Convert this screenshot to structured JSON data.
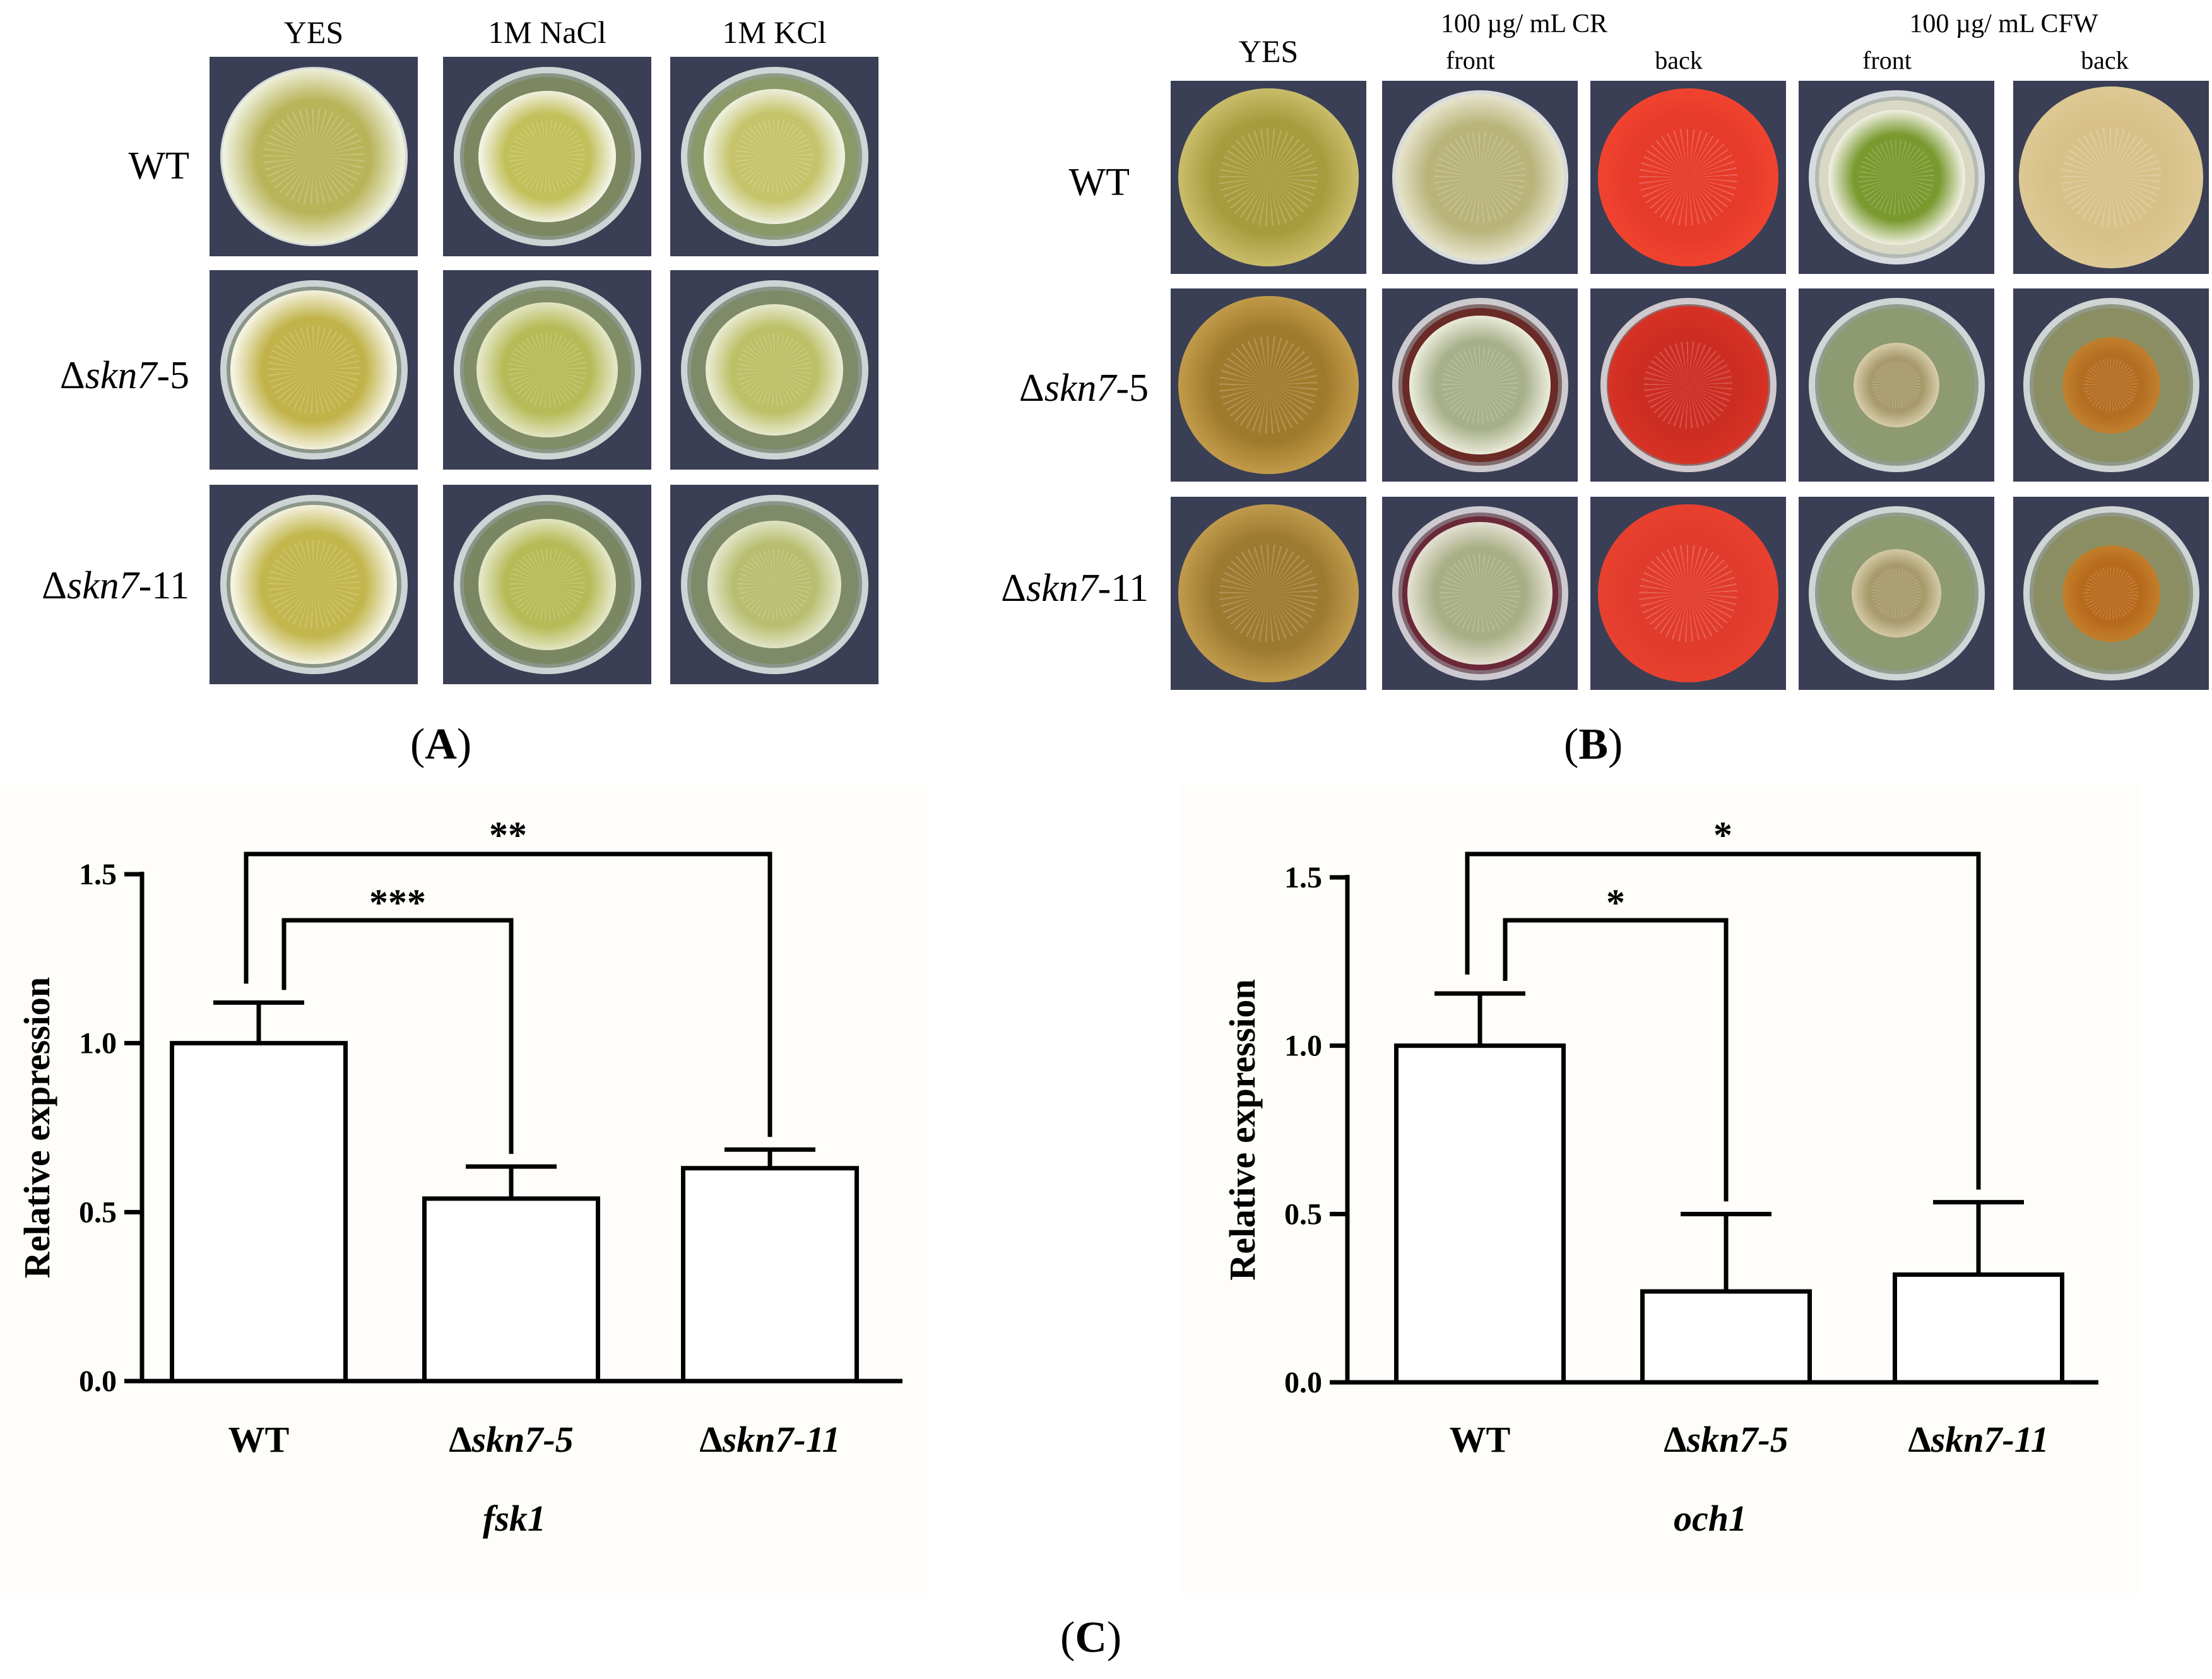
{
  "panelA": {
    "columns": [
      "YES",
      "1M NaCl",
      "1M KCl"
    ],
    "rows": [
      {
        "prefix": "",
        "italic": "",
        "suffix": "WT"
      },
      {
        "prefix": "Δ",
        "italic": "skn7",
        "suffix": "-5"
      },
      {
        "prefix": "Δ",
        "italic": "skn7",
        "suffix": "-11"
      }
    ],
    "letter": "A",
    "plates": [
      [
        {
          "bg": "#3a3f55",
          "medium": "#b7bf83",
          "halo": "#eef0dc",
          "colony": "#b9b45a",
          "size": 0.88
        },
        {
          "bg": "#3a3f55",
          "medium": "#7d8761",
          "halo": "#f2f2e4",
          "colony": "#c2c05a",
          "size": 0.66
        },
        {
          "bg": "#3a3f55",
          "medium": "#8b9868",
          "halo": "#eef0df",
          "colony": "#c5c46b",
          "size": 0.68
        }
      ],
      [
        {
          "bg": "#3a3f55",
          "medium": "#7f8b66",
          "halo": "#f5f3e2",
          "colony": "#c1b34a",
          "size": 0.8
        },
        {
          "bg": "#3a3f55",
          "medium": "#808d66",
          "halo": "#e3e6c4",
          "colony": "#b6bb58",
          "size": 0.68
        },
        {
          "bg": "#3a3f55",
          "medium": "#7e8a68",
          "halo": "#e8ead0",
          "colony": "#bcc066",
          "size": 0.66
        }
      ],
      [
        {
          "bg": "#3a3f55",
          "medium": "#7f8b66",
          "halo": "#f5f3e2",
          "colony": "#c2b64d",
          "size": 0.8
        },
        {
          "bg": "#3a3f55",
          "medium": "#7b8763",
          "halo": "#e3e6c4",
          "colony": "#b6bb58",
          "size": 0.66
        },
        {
          "bg": "#3a3f55",
          "medium": "#7e8a68",
          "halo": "#e2e5c8",
          "colony": "#b8be70",
          "size": 0.64
        }
      ]
    ]
  },
  "panelB": {
    "columns": [
      "YES",
      "100 µg/ mL CR",
      "100 µg/ mL CFW"
    ],
    "subcolumns": [
      "front",
      "back",
      "front",
      "back"
    ],
    "rows": [
      {
        "prefix": "",
        "italic": "",
        "suffix": "WT"
      },
      {
        "prefix": "Δ",
        "italic": "skn7",
        "suffix": "-5"
      },
      {
        "prefix": "Δ",
        "italic": "skn7",
        "suffix": "-11"
      }
    ],
    "letter": "B",
    "plates": [
      [
        {
          "bg": "#3a3f55",
          "medium": "#b6a854",
          "halo": "#c8bc6a",
          "colony": "#a89b3e",
          "size": 0.92
        },
        {
          "bg": "#3a3f55",
          "medium": "#d8d5b8",
          "halo": "#e6e3cc",
          "colony": "#b8b47a",
          "size": 0.86
        },
        {
          "bg": "#3a3f55",
          "medium": "#e8392a",
          "halo": "#f0432f",
          "colony": "#e63a2a",
          "size": 0.92
        },
        {
          "bg": "#3a3f55",
          "medium": "#d8d8c4",
          "halo": "#eeeedf",
          "colony": "#7a9a30",
          "size": 0.7
        },
        {
          "bg": "#3a3f55",
          "medium": "#d9c48e",
          "halo": "#ddc893",
          "colony": "#d7c189",
          "size": 0.94
        }
      ],
      [
        {
          "bg": "#3a3f55",
          "medium": "#b08a3a",
          "halo": "#c09a48",
          "colony": "#a07a2c",
          "size": 0.92
        },
        {
          "bg": "#3a3f55",
          "medium": "#6a2a26",
          "halo": "#e8ead8",
          "colony": "#a7b08a",
          "size": 0.72
        },
        {
          "bg": "#3a3f55",
          "medium": "#8c2a22",
          "halo": "#d63225",
          "colony": "#cc2d22",
          "size": 0.82
        },
        {
          "bg": "#3a3f55",
          "medium": "#8d9a72",
          "halo": "#d6cba8",
          "colony": "#a89a6c",
          "size": 0.44
        },
        {
          "bg": "#3a3f55",
          "medium": "#8a8e62",
          "halo": "#c0802e",
          "colony": "#b46d22",
          "size": 0.5
        }
      ],
      [
        {
          "bg": "#3a3f55",
          "medium": "#ae8a3c",
          "halo": "#bf9a4c",
          "colony": "#9c7a30",
          "size": 0.92
        },
        {
          "bg": "#3a3f55",
          "medium": "#6b2838",
          "halo": "#e2dfd0",
          "colony": "#a8af86",
          "size": 0.74
        },
        {
          "bg": "#3a3f55",
          "medium": "#d83a2c",
          "halo": "#e8402f",
          "colony": "#e03b2c",
          "size": 0.92
        },
        {
          "bg": "#3a3f55",
          "medium": "#8d9a72",
          "halo": "#d3c8a4",
          "colony": "#a89a6c",
          "size": 0.46
        },
        {
          "bg": "#3a3f55",
          "medium": "#8a8e62",
          "halo": "#c27e2a",
          "colony": "#b86a1c",
          "size": 0.5
        }
      ]
    ]
  },
  "panelC": {
    "letter": "C"
  },
  "chart_data": [
    {
      "type": "bar",
      "title": "",
      "xlabel": "fsk1",
      "ylabel": "Relative expression",
      "categories": [
        "WT",
        "Δskn7-5",
        "Δskn7-11"
      ],
      "category_parts": [
        {
          "prefix": "",
          "italic": "",
          "bold": "WT"
        },
        {
          "prefix": "Δ",
          "italic": "skn7-5",
          "bold": ""
        },
        {
          "prefix": "Δ",
          "italic": "skn7-11",
          "bold": ""
        }
      ],
      "values": [
        1.0,
        0.54,
        0.63
      ],
      "errors": [
        0.12,
        0.095,
        0.055
      ],
      "ylim": [
        0,
        1.5
      ],
      "yticks": [
        "0.0",
        "0.5",
        "1.0",
        "1.5"
      ],
      "significance": [
        {
          "from": 0,
          "to": 1,
          "label": "***"
        },
        {
          "from": 0,
          "to": 2,
          "label": "**"
        }
      ]
    },
    {
      "type": "bar",
      "title": "",
      "xlabel": "och1",
      "ylabel": "Relative expression",
      "categories": [
        "WT",
        "Δskn7-5",
        "Δskn7-11"
      ],
      "category_parts": [
        {
          "prefix": "",
          "italic": "",
          "bold": "WT"
        },
        {
          "prefix": "Δ",
          "italic": "skn7-5",
          "bold": ""
        },
        {
          "prefix": "Δ",
          "italic": "skn7-11",
          "bold": ""
        }
      ],
      "values": [
        1.0,
        0.27,
        0.32
      ],
      "errors": [
        0.155,
        0.23,
        0.215
      ],
      "ylim": [
        0,
        1.5
      ],
      "yticks": [
        "0.0",
        "0.5",
        "1.0",
        "1.5"
      ],
      "significance": [
        {
          "from": 0,
          "to": 1,
          "label": "*"
        },
        {
          "from": 0,
          "to": 2,
          "label": "*"
        }
      ]
    }
  ]
}
